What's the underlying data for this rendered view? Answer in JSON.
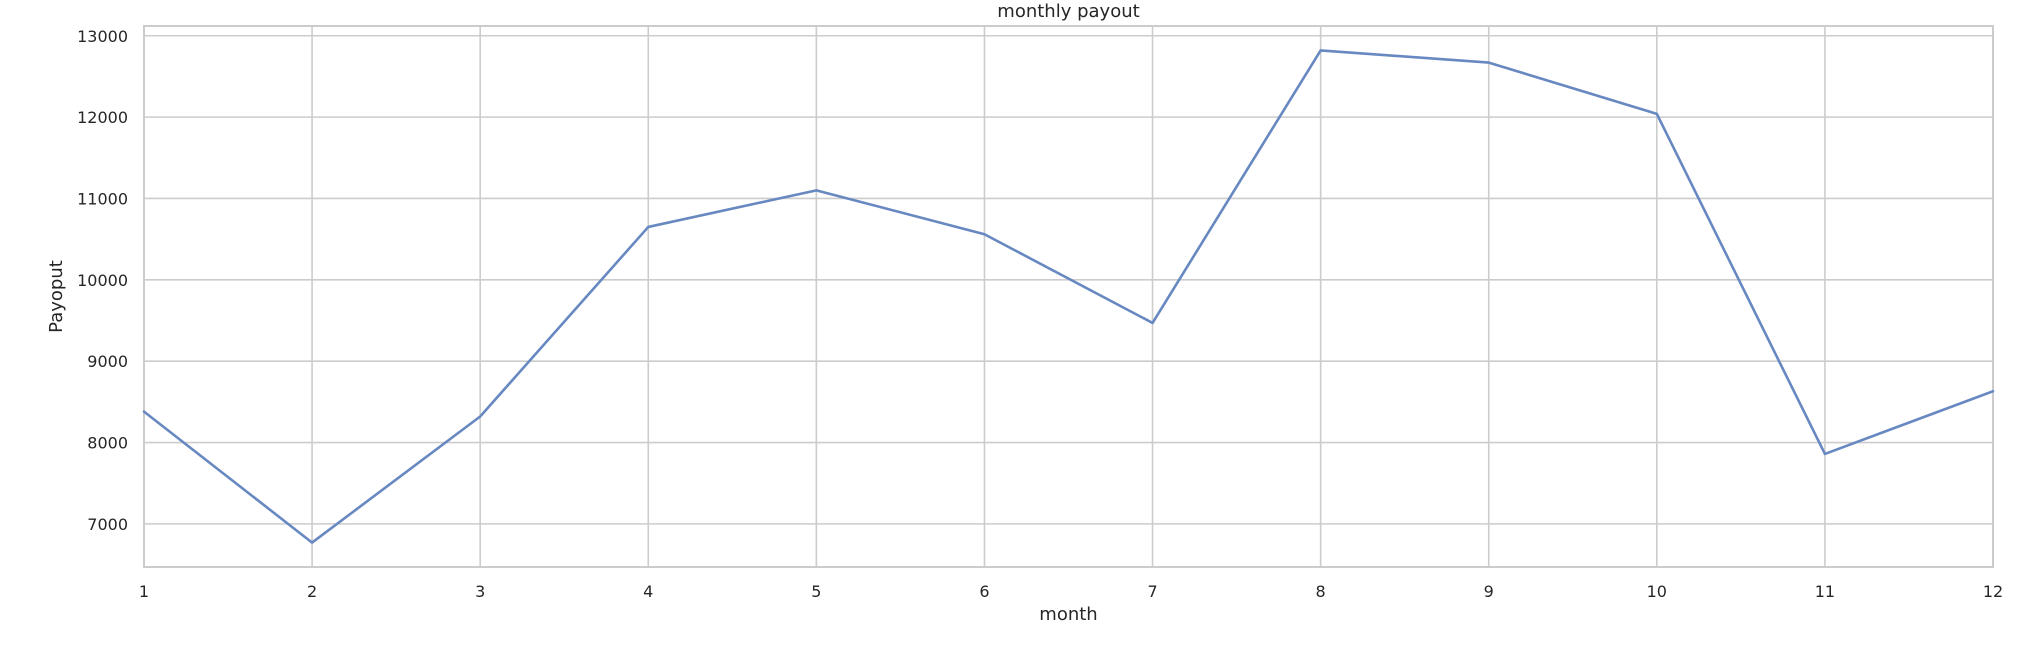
{
  "chart_data": {
    "type": "line",
    "title": "monthly payout",
    "xlabel": "month",
    "ylabel": "Payoput",
    "x": [
      1,
      2,
      3,
      4,
      5,
      6,
      7,
      8,
      9,
      10,
      11,
      12
    ],
    "series": [
      {
        "values": [
          8380,
          6770,
          8320,
          10650,
          11100,
          10560,
          9470,
          12820,
          12670,
          12040,
          7860,
          8630
        ]
      }
    ],
    "xlim": [
      1,
      12
    ],
    "ylim": [
      6470,
      13120
    ],
    "x_ticks": [
      1,
      2,
      3,
      4,
      5,
      6,
      7,
      8,
      9,
      10,
      11,
      12
    ],
    "y_ticks": [
      7000,
      8000,
      9000,
      10000,
      11000,
      12000,
      13000
    ],
    "grid": true,
    "line_color": "#6788c0"
  }
}
